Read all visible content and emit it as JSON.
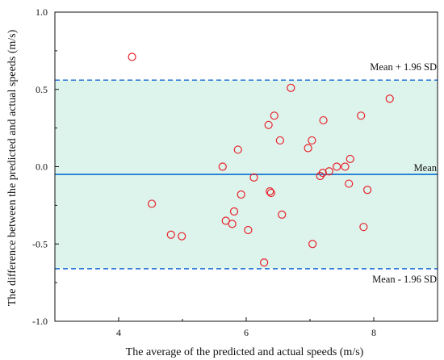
{
  "chart_data": {
    "type": "scatter",
    "title": "",
    "xlabel": "The average of the predicted and actual speeds (m/s)",
    "ylabel": "The difference between the predicted and actual speeds (m/s)",
    "xlim": [
      3.0,
      9.0
    ],
    "ylim": [
      -1.0,
      1.0
    ],
    "x_ticks": [
      4,
      6,
      8
    ],
    "y_ticks": [
      -1.0,
      -0.5,
      0.0,
      0.5,
      1.0
    ],
    "x_tick_labels": [
      "4",
      "6",
      "8"
    ],
    "y_tick_labels": [
      "-1.0",
      "-0.5",
      "0.0",
      "0.5",
      "1.0"
    ],
    "mean": -0.05,
    "upper_loa": 0.56,
    "lower_loa": -0.66,
    "mean_label": "Mean",
    "upper_label": "Mean + 1.96 SD",
    "lower_label": "Mean - 1.96 SD",
    "points": [
      {
        "x": 4.21,
        "y": 0.71
      },
      {
        "x": 4.52,
        "y": -0.24
      },
      {
        "x": 4.82,
        "y": -0.44
      },
      {
        "x": 4.99,
        "y": -0.45
      },
      {
        "x": 5.63,
        "y": 0.0
      },
      {
        "x": 5.68,
        "y": -0.35
      },
      {
        "x": 5.78,
        "y": -0.37
      },
      {
        "x": 5.81,
        "y": -0.29
      },
      {
        "x": 5.87,
        "y": 0.11
      },
      {
        "x": 5.92,
        "y": -0.18
      },
      {
        "x": 6.03,
        "y": -0.41
      },
      {
        "x": 6.12,
        "y": -0.07
      },
      {
        "x": 6.35,
        "y": 0.27
      },
      {
        "x": 6.37,
        "y": -0.16
      },
      {
        "x": 6.39,
        "y": -0.17
      },
      {
        "x": 6.44,
        "y": 0.33
      },
      {
        "x": 6.53,
        "y": 0.17
      },
      {
        "x": 6.56,
        "y": -0.31
      },
      {
        "x": 6.28,
        "y": -0.62
      },
      {
        "x": 6.7,
        "y": 0.51
      },
      {
        "x": 6.97,
        "y": 0.12
      },
      {
        "x": 7.03,
        "y": 0.17
      },
      {
        "x": 7.04,
        "y": -0.5
      },
      {
        "x": 7.16,
        "y": -0.06
      },
      {
        "x": 7.2,
        "y": -0.04
      },
      {
        "x": 7.21,
        "y": 0.3
      },
      {
        "x": 7.3,
        "y": -0.03
      },
      {
        "x": 7.42,
        "y": 0.0
      },
      {
        "x": 7.55,
        "y": 0.0
      },
      {
        "x": 7.61,
        "y": -0.11
      },
      {
        "x": 7.63,
        "y": 0.05
      },
      {
        "x": 7.8,
        "y": 0.33
      },
      {
        "x": 7.84,
        "y": -0.39
      },
      {
        "x": 7.9,
        "y": -0.15
      },
      {
        "x": 8.25,
        "y": 0.44
      }
    ],
    "grid": false,
    "colors": {
      "band_fill": "#ddf4ec",
      "mean_line": "#1f7fd6",
      "loa_line": "#1f6fd6",
      "marker": "#e8212b",
      "axis": "#111111"
    }
  }
}
